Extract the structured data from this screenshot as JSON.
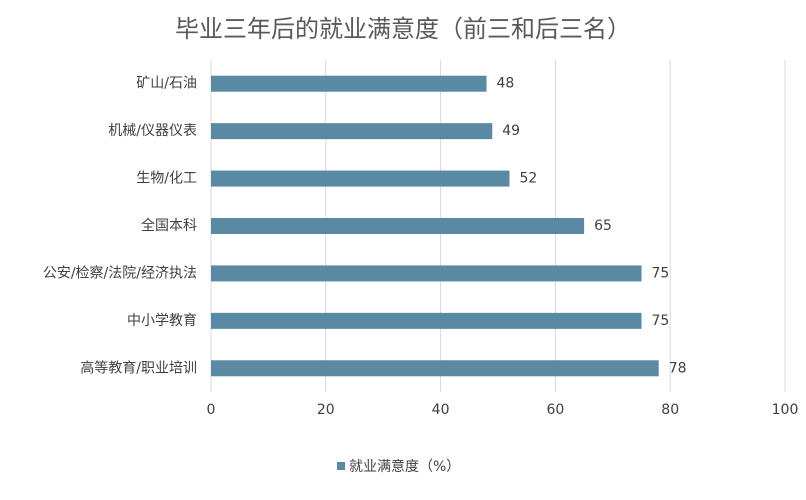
{
  "chart_data": {
    "type": "bar",
    "orientation": "horizontal",
    "title": "毕业三年后的就业满意度（前三和后三名）",
    "categories": [
      "矿山/石油",
      "机械/仪器仪表",
      "生物/化工",
      "全国本科",
      "公安/检察/法院/经济执法",
      "中小学教育",
      "高等教育/职业培训"
    ],
    "series": [
      {
        "name": "就业满意度（%）",
        "color": "#5a89a3",
        "values": [
          48,
          49,
          52,
          65,
          75,
          75,
          78
        ]
      }
    ],
    "xlim": [
      0,
      100
    ],
    "xticks": [
      0,
      20,
      40,
      60,
      80,
      100
    ],
    "grid": true,
    "legend": "bottom"
  }
}
